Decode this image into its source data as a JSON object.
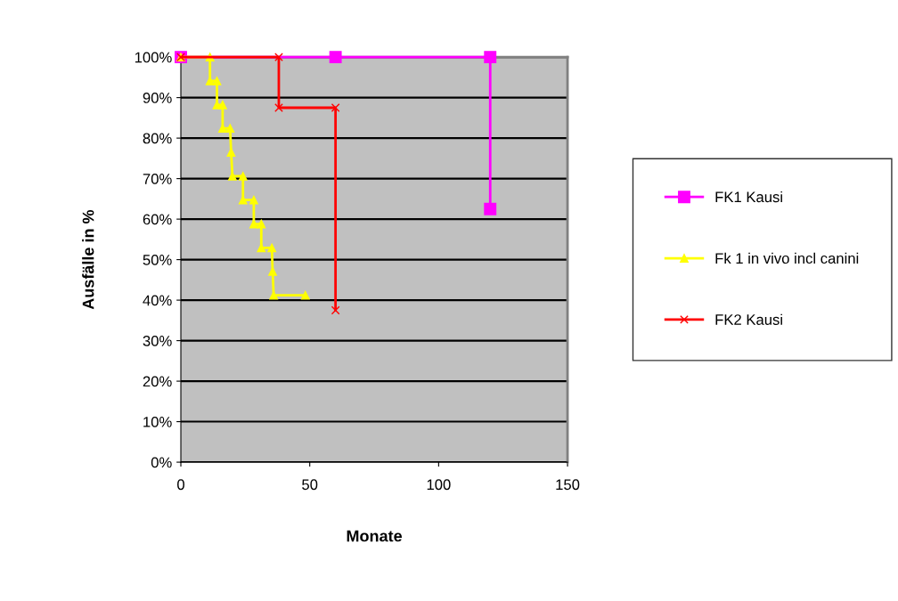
{
  "chart_data": {
    "type": "line",
    "xlabel": "Monate",
    "ylabel": "Ausfälle in %",
    "xlim": [
      0,
      150
    ],
    "xticks": [
      0,
      50,
      100,
      150
    ],
    "ylim": [
      0,
      100
    ],
    "yticks": [
      {
        "value": 0,
        "label": "0%"
      },
      {
        "value": 10,
        "label": "10%"
      },
      {
        "value": 20,
        "label": "20%"
      },
      {
        "value": 30,
        "label": "30%"
      },
      {
        "value": 40,
        "label": "40%"
      },
      {
        "value": 50,
        "label": "50%"
      },
      {
        "value": 60,
        "label": "60%"
      },
      {
        "value": 70,
        "label": "70%"
      },
      {
        "value": 80,
        "label": "80%"
      },
      {
        "value": 90,
        "label": "90%"
      },
      {
        "value": 100,
        "label": "100%"
      }
    ],
    "grid": "y",
    "legend": "right",
    "series": [
      {
        "name": "FK1 Kausi",
        "color": "#ff00ff",
        "marker": "square",
        "x": [
          0,
          60,
          120,
          120
        ],
        "values": [
          100,
          100,
          100,
          62.5
        ]
      },
      {
        "name": "Fk 1 in vivo incl canini",
        "color": "#ffff00",
        "marker": "triangle",
        "x": [
          0,
          11.3,
          11.3,
          14,
          14,
          16.2,
          16.2,
          19.1,
          19.5,
          20,
          24.1,
          24.1,
          28.3,
          28.3,
          31.2,
          31.2,
          35.3,
          35.6,
          36,
          48.3
        ],
        "values": [
          100,
          100,
          94.1,
          94.1,
          88.2,
          88.2,
          82.4,
          82.4,
          76.5,
          70.6,
          70.6,
          64.7,
          64.7,
          58.8,
          58.8,
          52.9,
          52.9,
          47.1,
          41.2,
          41.2
        ]
      },
      {
        "name": "FK2 Kausi",
        "color": "#ff0000",
        "marker": "cross",
        "x": [
          0,
          38,
          38,
          60,
          60
        ],
        "values": [
          100,
          100,
          87.5,
          87.5,
          37.5
        ]
      }
    ]
  }
}
